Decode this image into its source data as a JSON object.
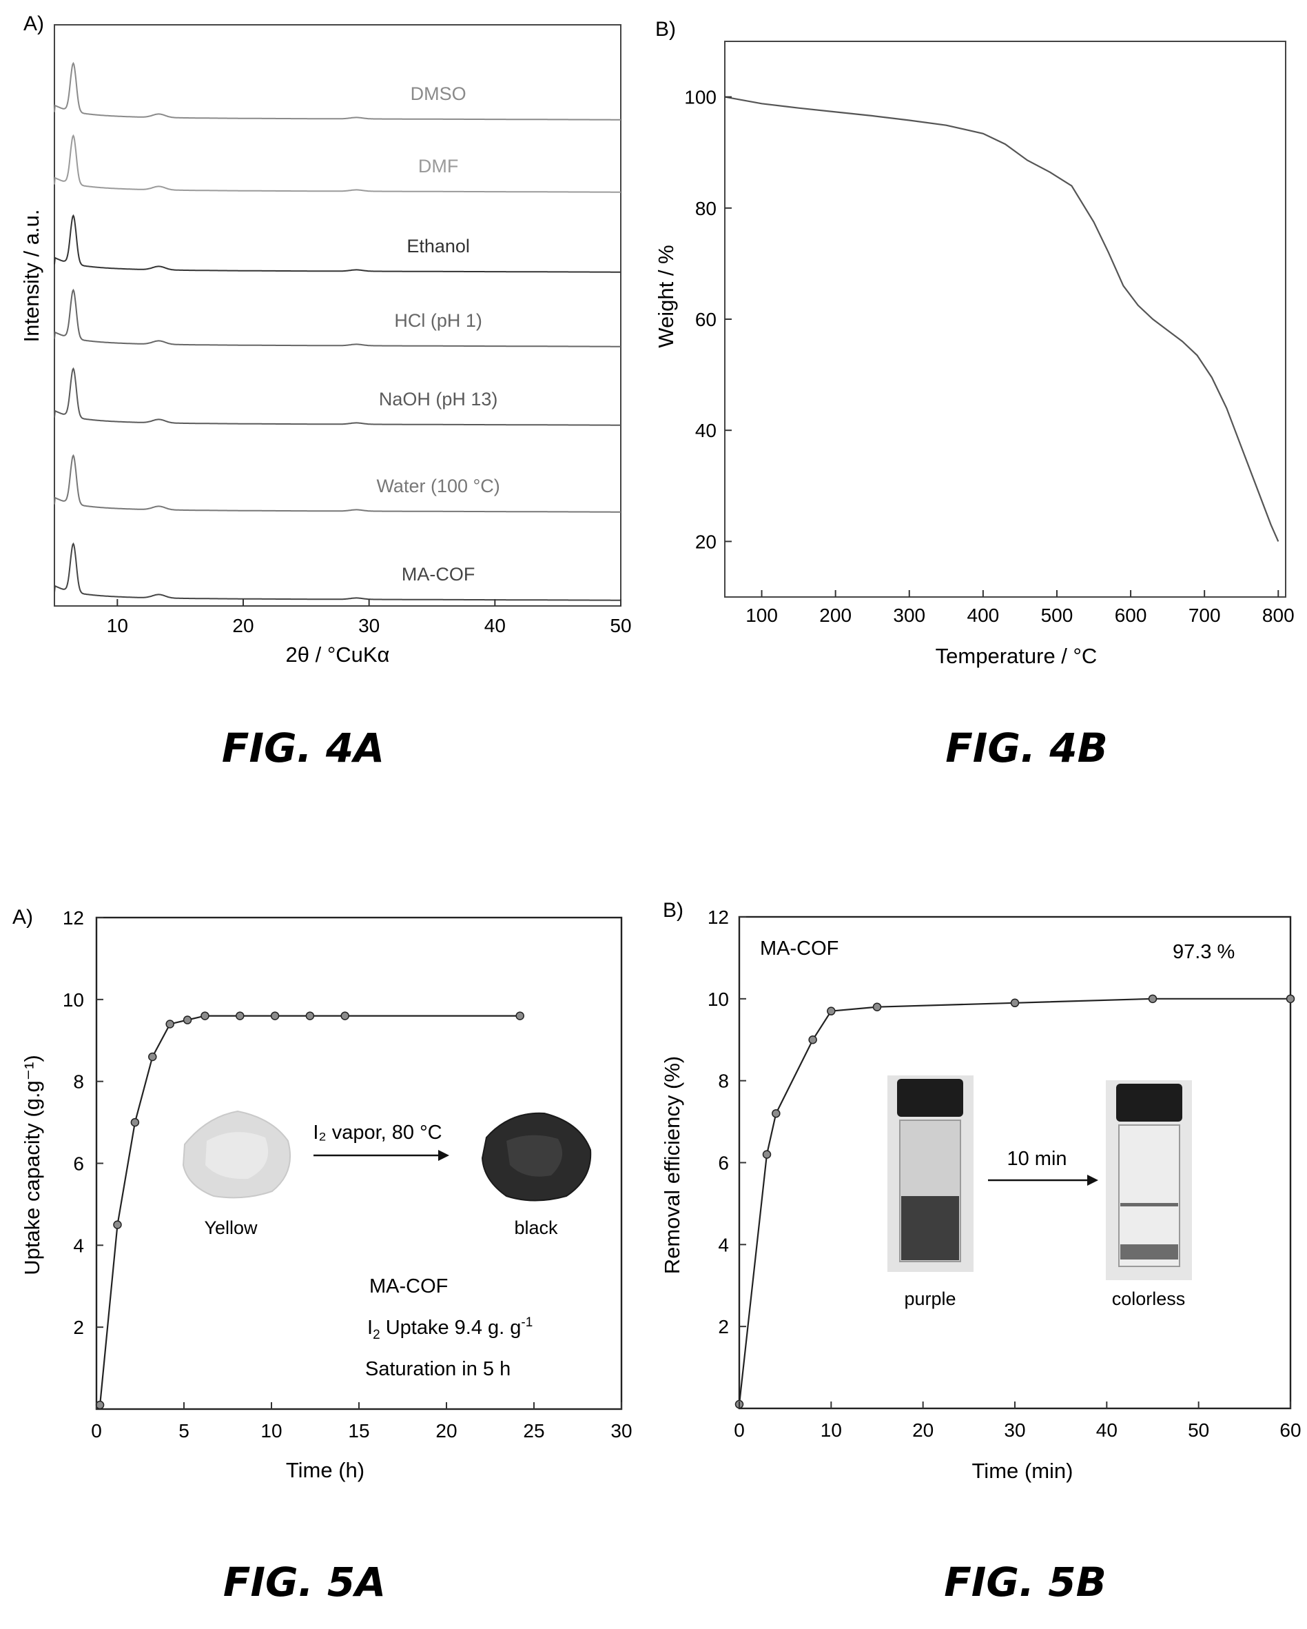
{
  "chart_data": [
    {
      "id": "fig4a",
      "type": "line",
      "panel": "A)",
      "figure_label": "FIG. 4A",
      "xlabel": "2θ / °CuKα",
      "ylabel": "Intensity / a.u.",
      "xlim": [
        5,
        50
      ],
      "xticks": [
        10,
        20,
        30,
        40,
        50
      ],
      "grid": false,
      "series": [
        {
          "name": "DMSO",
          "color": "#8a8a8a",
          "label_x": 35.5
        },
        {
          "name": "DMF",
          "color": "#9a9a9a",
          "label_x": 35.5
        },
        {
          "name": "Ethanol",
          "color": "#333333",
          "label_x": 35.5
        },
        {
          "name": "HCl (pH 1)",
          "color": "#666666",
          "label_x": 35.5
        },
        {
          "name": "NaOH (pH 13)",
          "color": "#5a5a5a",
          "label_x": 35.5
        },
        {
          "name": "Water (100 °C)",
          "color": "#777777",
          "label_x": 35.5
        },
        {
          "name": "MA-COF",
          "color": "#444444",
          "label_x": 35.5
        }
      ],
      "profile": {
        "peak_center": 6.5,
        "peak_height": 70,
        "secondary_peaks": [
          {
            "center": 13.3,
            "height": 5
          },
          {
            "center": 29.0,
            "height": 2
          }
        ]
      }
    },
    {
      "id": "fig4b",
      "type": "line",
      "panel": "B)",
      "figure_label": "FIG. 4B",
      "xlabel": "Temperature / °C",
      "ylabel": "Weight / %",
      "xlim": [
        50,
        810
      ],
      "ylim": [
        10,
        110
      ],
      "xticks": [
        100,
        200,
        300,
        400,
        500,
        600,
        700,
        800
      ],
      "yticks": [
        20,
        40,
        60,
        80,
        100
      ],
      "grid": false,
      "series": [
        {
          "name": "",
          "color": "#555555",
          "x": [
            50,
            100,
            150,
            200,
            250,
            300,
            350,
            400,
            430,
            460,
            490,
            520,
            550,
            570,
            590,
            610,
            630,
            650,
            670,
            690,
            710,
            730,
            750,
            770,
            790,
            800
          ],
          "y": [
            100,
            98.8,
            98,
            97.3,
            96.6,
            95.8,
            94.9,
            93.4,
            91.5,
            88.6,
            86.5,
            84,
            77.5,
            72,
            66,
            62.5,
            60,
            58,
            56,
            53.5,
            49.5,
            44,
            37,
            30,
            23,
            20
          ]
        }
      ]
    },
    {
      "id": "fig5a",
      "type": "line",
      "panel": "A)",
      "figure_label": "FIG. 5A",
      "xlabel": "Time (h)",
      "ylabel": "Uptake capacity (g.g⁻¹)",
      "xlim": [
        0,
        30
      ],
      "ylim": [
        0,
        12
      ],
      "xticks": [
        0,
        5,
        10,
        15,
        20,
        25,
        30
      ],
      "yticks": [
        2,
        4,
        6,
        8,
        10,
        12
      ],
      "grid": false,
      "series": [
        {
          "name": "",
          "color": "#222222",
          "x": [
            0.2,
            1.2,
            2.2,
            3.2,
            4.2,
            5.2,
            6.2,
            8.2,
            10.2,
            12.2,
            14.2,
            24.2
          ],
          "y": [
            0.1,
            4.5,
            7.0,
            8.6,
            9.4,
            9.5,
            9.6,
            9.6,
            9.6,
            9.6,
            9.6,
            9.6
          ]
        }
      ],
      "annotations": {
        "arrow_text": "I₂ vapor, 80 °C",
        "left_caption": "Yellow",
        "right_caption": "black",
        "line1": "MA-COF",
        "line2_prefix": "I",
        "line2_sub": "2",
        "line2_mid": " Uptake  9.4 g. g",
        "line2_sup": "-1",
        "line3": "Saturation in 5 h"
      }
    },
    {
      "id": "fig5b",
      "type": "line",
      "panel": "B)",
      "figure_label": "FIG. 5B",
      "xlabel": "Time (min)",
      "ylabel": "Removal efficiency (%)",
      "xlim": [
        0,
        60
      ],
      "ylim": [
        0,
        12
      ],
      "xticks": [
        0,
        10,
        20,
        30,
        40,
        50,
        60
      ],
      "yticks": [
        2,
        4,
        6,
        8,
        10,
        12
      ],
      "grid": false,
      "series": [
        {
          "name": "",
          "color": "#222222",
          "x": [
            0,
            3,
            4,
            8,
            10,
            15,
            30,
            45,
            60
          ],
          "y": [
            0.1,
            6.2,
            7.2,
            9.0,
            9.7,
            9.8,
            9.9,
            10.0,
            10.0
          ]
        }
      ],
      "annotations": {
        "top_left": "MA-COF",
        "top_right": "97.3 %",
        "arrow_text": "10 min",
        "left_caption": "purple",
        "right_caption": "colorless"
      }
    }
  ]
}
